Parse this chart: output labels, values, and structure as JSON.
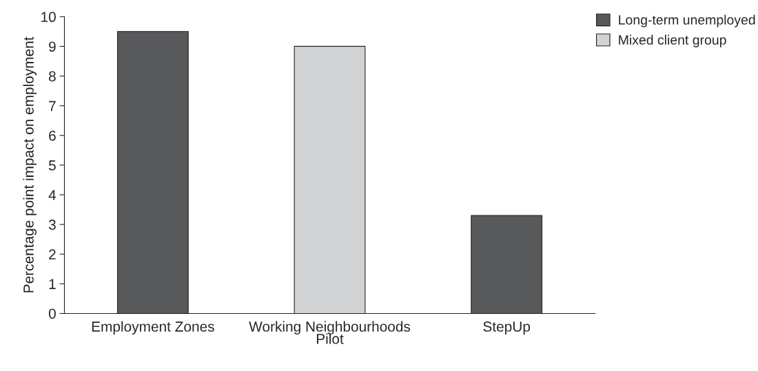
{
  "chart_data": {
    "type": "bar",
    "ylabel": "Percentage point impact on employment",
    "categories": [
      "Employment Zones",
      "Working Neighbourhoods\nPilot",
      "StepUp"
    ],
    "series": [
      {
        "name": "Long-term unemployed",
        "color": "#58595b",
        "values": [
          9.5,
          null,
          3.3
        ]
      },
      {
        "name": "Mixed client group",
        "color": "#d1d2d4",
        "values": [
          null,
          9.0,
          null
        ]
      }
    ],
    "ylim": [
      0,
      10
    ],
    "yticks": [
      0,
      1,
      2,
      3,
      4,
      5,
      6,
      7,
      8,
      9,
      10
    ],
    "grid": false,
    "legend": "top right"
  }
}
